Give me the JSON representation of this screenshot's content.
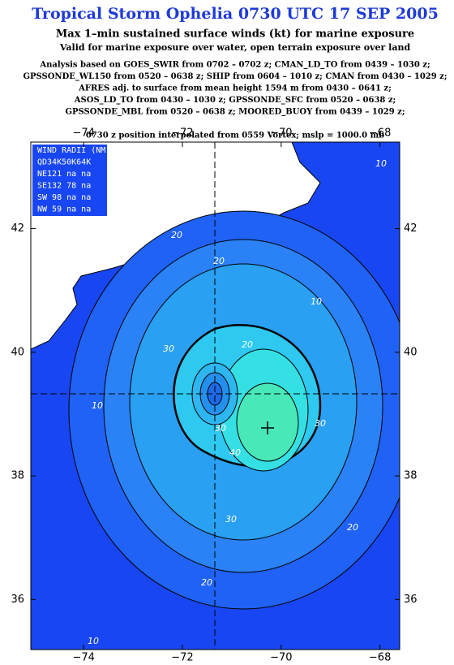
{
  "header": {
    "title": "Tropical Storm Ophelia 0730 UTC 17 SEP 2005",
    "subtitle": "Max 1–min sustained surface winds (kt) for marine exposure",
    "note": "Valid for marine exposure over water, open terrain exposure over land",
    "analysis": [
      "Analysis based on  GOES_SWIR from 0702 – 0702 z;  CMAN_LD_TO from 0439 – 1030 z;",
      "GPSSONDE_WL150 from 0520 – 0638 z;  SHIP from 0604 – 1010 z;  CMAN from 0430 – 1029 z;",
      "AFRES adj. to surface from mean height 1594 m from 0430 – 0641 z;",
      "ASOS_LD_TO from 0430 – 1030 z;  GPSSONDE_SFC from 0520 – 0638 z;",
      "GPSSONDE_MBL from 0520 – 0638 z;  MOORED_BUOY from 0439 – 1029 z;"
    ],
    "position": "0730 z position interpolated from 0559 Vortex; mslp = 1000.0 mb"
  },
  "map": {
    "xlim": [
      -75.07,
      -67.6
    ],
    "ylim": [
      35.19,
      43.4
    ],
    "xticks": [
      {
        "value": -74,
        "label": "−74"
      },
      {
        "value": -72,
        "label": "−72"
      },
      {
        "value": -70,
        "label": "−70"
      },
      {
        "value": -68,
        "label": "−68"
      }
    ],
    "yticks": [
      36,
      38,
      40,
      42
    ],
    "wind_radii": [
      "WIND RADII (NM)",
      "QD34K50K64K",
      "NE121 na na",
      "SE132 78 na",
      "SW 98 na na",
      "NW 59 na na"
    ],
    "contour_labels": [
      "10",
      "20",
      "10",
      "20",
      "30",
      "30",
      "30",
      "40",
      "30",
      "20",
      "20",
      "10",
      "10",
      "20"
    ]
  }
}
